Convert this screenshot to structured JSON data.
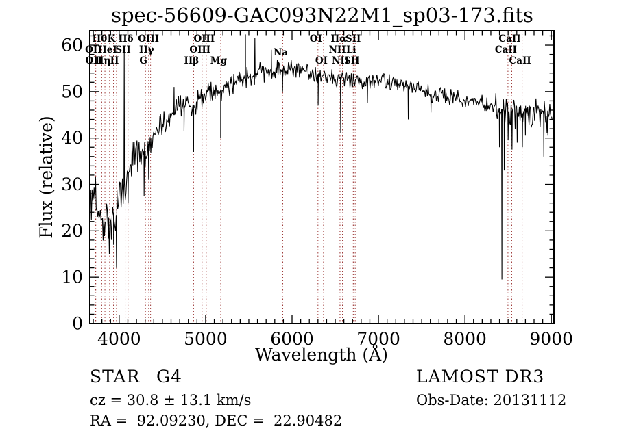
{
  "title": "spec-56609-GAC093N22M1_sp03-173.fits",
  "footer": {
    "class_label": "STAR",
    "subclass": "G4",
    "cz_line": "cz = 30.8 ± 13.1 km/s",
    "ra_dec_line": "RA =  92.09230, DEC =  22.90482",
    "survey": "LAMOST DR3",
    "obs_date_line": "Obs-Date: 20131112"
  },
  "chart_data": {
    "type": "line",
    "title": "spec-56609-GAC093N22M1_sp03-173.fits",
    "xlabel": "Wavelength (Å)",
    "ylabel": "Flux (relative)",
    "xlim": [
      3660,
      9030
    ],
    "ylim": [
      0,
      63.1
    ],
    "xticks": [
      4000,
      5000,
      6000,
      7000,
      8000,
      9000
    ],
    "xminor_step": 100,
    "yticks": [
      0,
      10,
      20,
      30,
      40,
      50,
      60
    ],
    "yminor_step": 2,
    "grid": false,
    "legend": "none",
    "line_color": "#000000",
    "marker_line_color": "#9e3a38",
    "spectral_lines": [
      {
        "label": "Hθ",
        "wavelength": 3798,
        "row": 1
      },
      {
        "label": "K",
        "wavelength": 3934,
        "row": 1
      },
      {
        "label": "Hδ",
        "wavelength": 4102,
        "row": 1
      },
      {
        "label": "OIII",
        "wavelength": 4363,
        "row": 1
      },
      {
        "label": "OIII",
        "wavelength": 5007,
        "row": 1
      },
      {
        "label": "OI",
        "wavelength": 6300,
        "row": 1
      },
      {
        "label": "Hα",
        "wavelength": 6563,
        "row": 1
      },
      {
        "label": "SII",
        "wavelength": 6731,
        "row": 1
      },
      {
        "label": "CaII",
        "wavelength": 8542,
        "row": 1
      },
      {
        "label": "OII",
        "wavelength": 3726,
        "row": 2
      },
      {
        "label": "HeI",
        "wavelength": 3889,
        "row": 2
      },
      {
        "label": "SII",
        "wavelength": 4069,
        "row": 2
      },
      {
        "label": "Hγ",
        "wavelength": 4341,
        "row": 2
      },
      {
        "label": "OIII",
        "wavelength": 4959,
        "row": 2
      },
      {
        "label": "NII",
        "wavelength": 6548,
        "row": 2
      },
      {
        "label": "Li",
        "wavelength": 6708,
        "row": 2
      },
      {
        "label": "CaII",
        "wavelength": 8498,
        "row": 2
      },
      {
        "label": "OII",
        "wavelength": 3729,
        "row": 3
      },
      {
        "label": "Hη",
        "wavelength": 3835,
        "row": 3
      },
      {
        "label": "H",
        "wavelength": 3969,
        "row": 3
      },
      {
        "label": "G",
        "wavelength": 4304,
        "row": 3
      },
      {
        "label": "Hβ",
        "wavelength": 4861,
        "row": 3
      },
      {
        "label": "Mg",
        "wavelength": 5175,
        "row": 3
      },
      {
        "label": "Na",
        "wavelength": 5893,
        "row": 2.25
      },
      {
        "label": "OI",
        "wavelength": 6364,
        "row": 3
      },
      {
        "label": "NII",
        "wavelength": 6583,
        "row": 3
      },
      {
        "label": "SII",
        "wavelength": 6716,
        "row": 3
      },
      {
        "label": "CaII",
        "wavelength": 8662,
        "row": 3
      }
    ],
    "envelope": [
      [
        3660,
        29
      ],
      [
        3680,
        28
      ],
      [
        3700,
        28.5
      ],
      [
        3720,
        26.5
      ],
      [
        3750,
        25
      ],
      [
        3780,
        24
      ],
      [
        3810,
        23
      ],
      [
        3840,
        22.5
      ],
      [
        3870,
        23
      ],
      [
        3900,
        22.5
      ],
      [
        3935,
        23.5
      ],
      [
        3965,
        23
      ],
      [
        4000,
        26.5
      ],
      [
        4040,
        29
      ],
      [
        4080,
        31
      ],
      [
        4120,
        33.5
      ],
      [
        4160,
        36
      ],
      [
        4200,
        38
      ],
      [
        4250,
        37.5
      ],
      [
        4300,
        36
      ],
      [
        4330,
        37
      ],
      [
        4370,
        39
      ],
      [
        4420,
        41
      ],
      [
        4470,
        42.5
      ],
      [
        4520,
        43.5
      ],
      [
        4580,
        44.5
      ],
      [
        4640,
        45.5
      ],
      [
        4700,
        46.5
      ],
      [
        4760,
        47
      ],
      [
        4820,
        47.5
      ],
      [
        4870,
        47
      ],
      [
        4920,
        48.5
      ],
      [
        4980,
        49.5
      ],
      [
        5040,
        50
      ],
      [
        5100,
        50.5
      ],
      [
        5160,
        49.5
      ],
      [
        5220,
        51
      ],
      [
        5300,
        51.5
      ],
      [
        5400,
        52.5
      ],
      [
        5500,
        53
      ],
      [
        5600,
        53.8
      ],
      [
        5700,
        54.2
      ],
      [
        5800,
        54.8
      ],
      [
        5870,
        55
      ],
      [
        5910,
        54.6
      ],
      [
        5960,
        55.4
      ],
      [
        6020,
        55
      ],
      [
        6100,
        54.6
      ],
      [
        6200,
        54.2
      ],
      [
        6300,
        53.6
      ],
      [
        6400,
        53.5
      ],
      [
        6480,
        53
      ],
      [
        6540,
        52.4
      ],
      [
        6620,
        52.6
      ],
      [
        6700,
        52.6
      ],
      [
        6800,
        52
      ],
      [
        6860,
        51.6
      ],
      [
        6940,
        52.4
      ],
      [
        7020,
        52.6
      ],
      [
        7100,
        52.2
      ],
      [
        7200,
        51.8
      ],
      [
        7300,
        51.3
      ],
      [
        7400,
        50.8
      ],
      [
        7500,
        50.3
      ],
      [
        7580,
        49.8
      ],
      [
        7630,
        49
      ],
      [
        7700,
        49.6
      ],
      [
        7800,
        49
      ],
      [
        7900,
        48.6
      ],
      [
        8000,
        48.2
      ],
      [
        8100,
        47.8
      ],
      [
        8200,
        47.6
      ],
      [
        8300,
        47
      ],
      [
        8380,
        46.6
      ],
      [
        8450,
        46
      ],
      [
        8520,
        45.3
      ],
      [
        8580,
        45.2
      ],
      [
        8640,
        45.3
      ],
      [
        8700,
        45.4
      ],
      [
        8760,
        45.1
      ],
      [
        8820,
        45.4
      ],
      [
        8880,
        45.2
      ],
      [
        8940,
        45.3
      ],
      [
        9000,
        44.8
      ],
      [
        9030,
        44.5
      ]
    ],
    "noise_segments": [
      [
        3660,
        3990,
        3.0
      ],
      [
        3990,
        4380,
        2.3
      ],
      [
        4380,
        4980,
        1.5
      ],
      [
        4980,
        5850,
        1.3
      ],
      [
        5850,
        6850,
        1.0
      ],
      [
        6850,
        8330,
        0.95
      ],
      [
        8330,
        9030,
        1.7
      ]
    ],
    "spikes": [
      [
        3875,
        18.5
      ],
      [
        3935,
        17
      ],
      [
        3969,
        12
      ],
      [
        4058,
        59
      ],
      [
        4103,
        26
      ],
      [
        4288,
        27.5
      ],
      [
        4302,
        34
      ],
      [
        4341,
        31
      ],
      [
        4635,
        51
      ],
      [
        4750,
        41.5
      ],
      [
        4861,
        37
      ],
      [
        5174,
        40
      ],
      [
        5461,
        62.3
      ],
      [
        5570,
        61.5
      ],
      [
        5760,
        59
      ],
      [
        5890,
        50
      ],
      [
        6302,
        47
      ],
      [
        6563,
        41
      ],
      [
        6872,
        47.5
      ],
      [
        7345,
        44
      ],
      [
        7607,
        45.5
      ],
      [
        8400,
        38
      ],
      [
        8428,
        9.5
      ],
      [
        8455,
        33
      ],
      [
        8500,
        39.5
      ],
      [
        8545,
        37.5
      ],
      [
        8605,
        39
      ],
      [
        8665,
        38
      ],
      [
        8700,
        40.5
      ],
      [
        8913,
        36
      ],
      [
        8960,
        40.5
      ]
    ],
    "noise_seed": 12,
    "sample_step": 8
  }
}
